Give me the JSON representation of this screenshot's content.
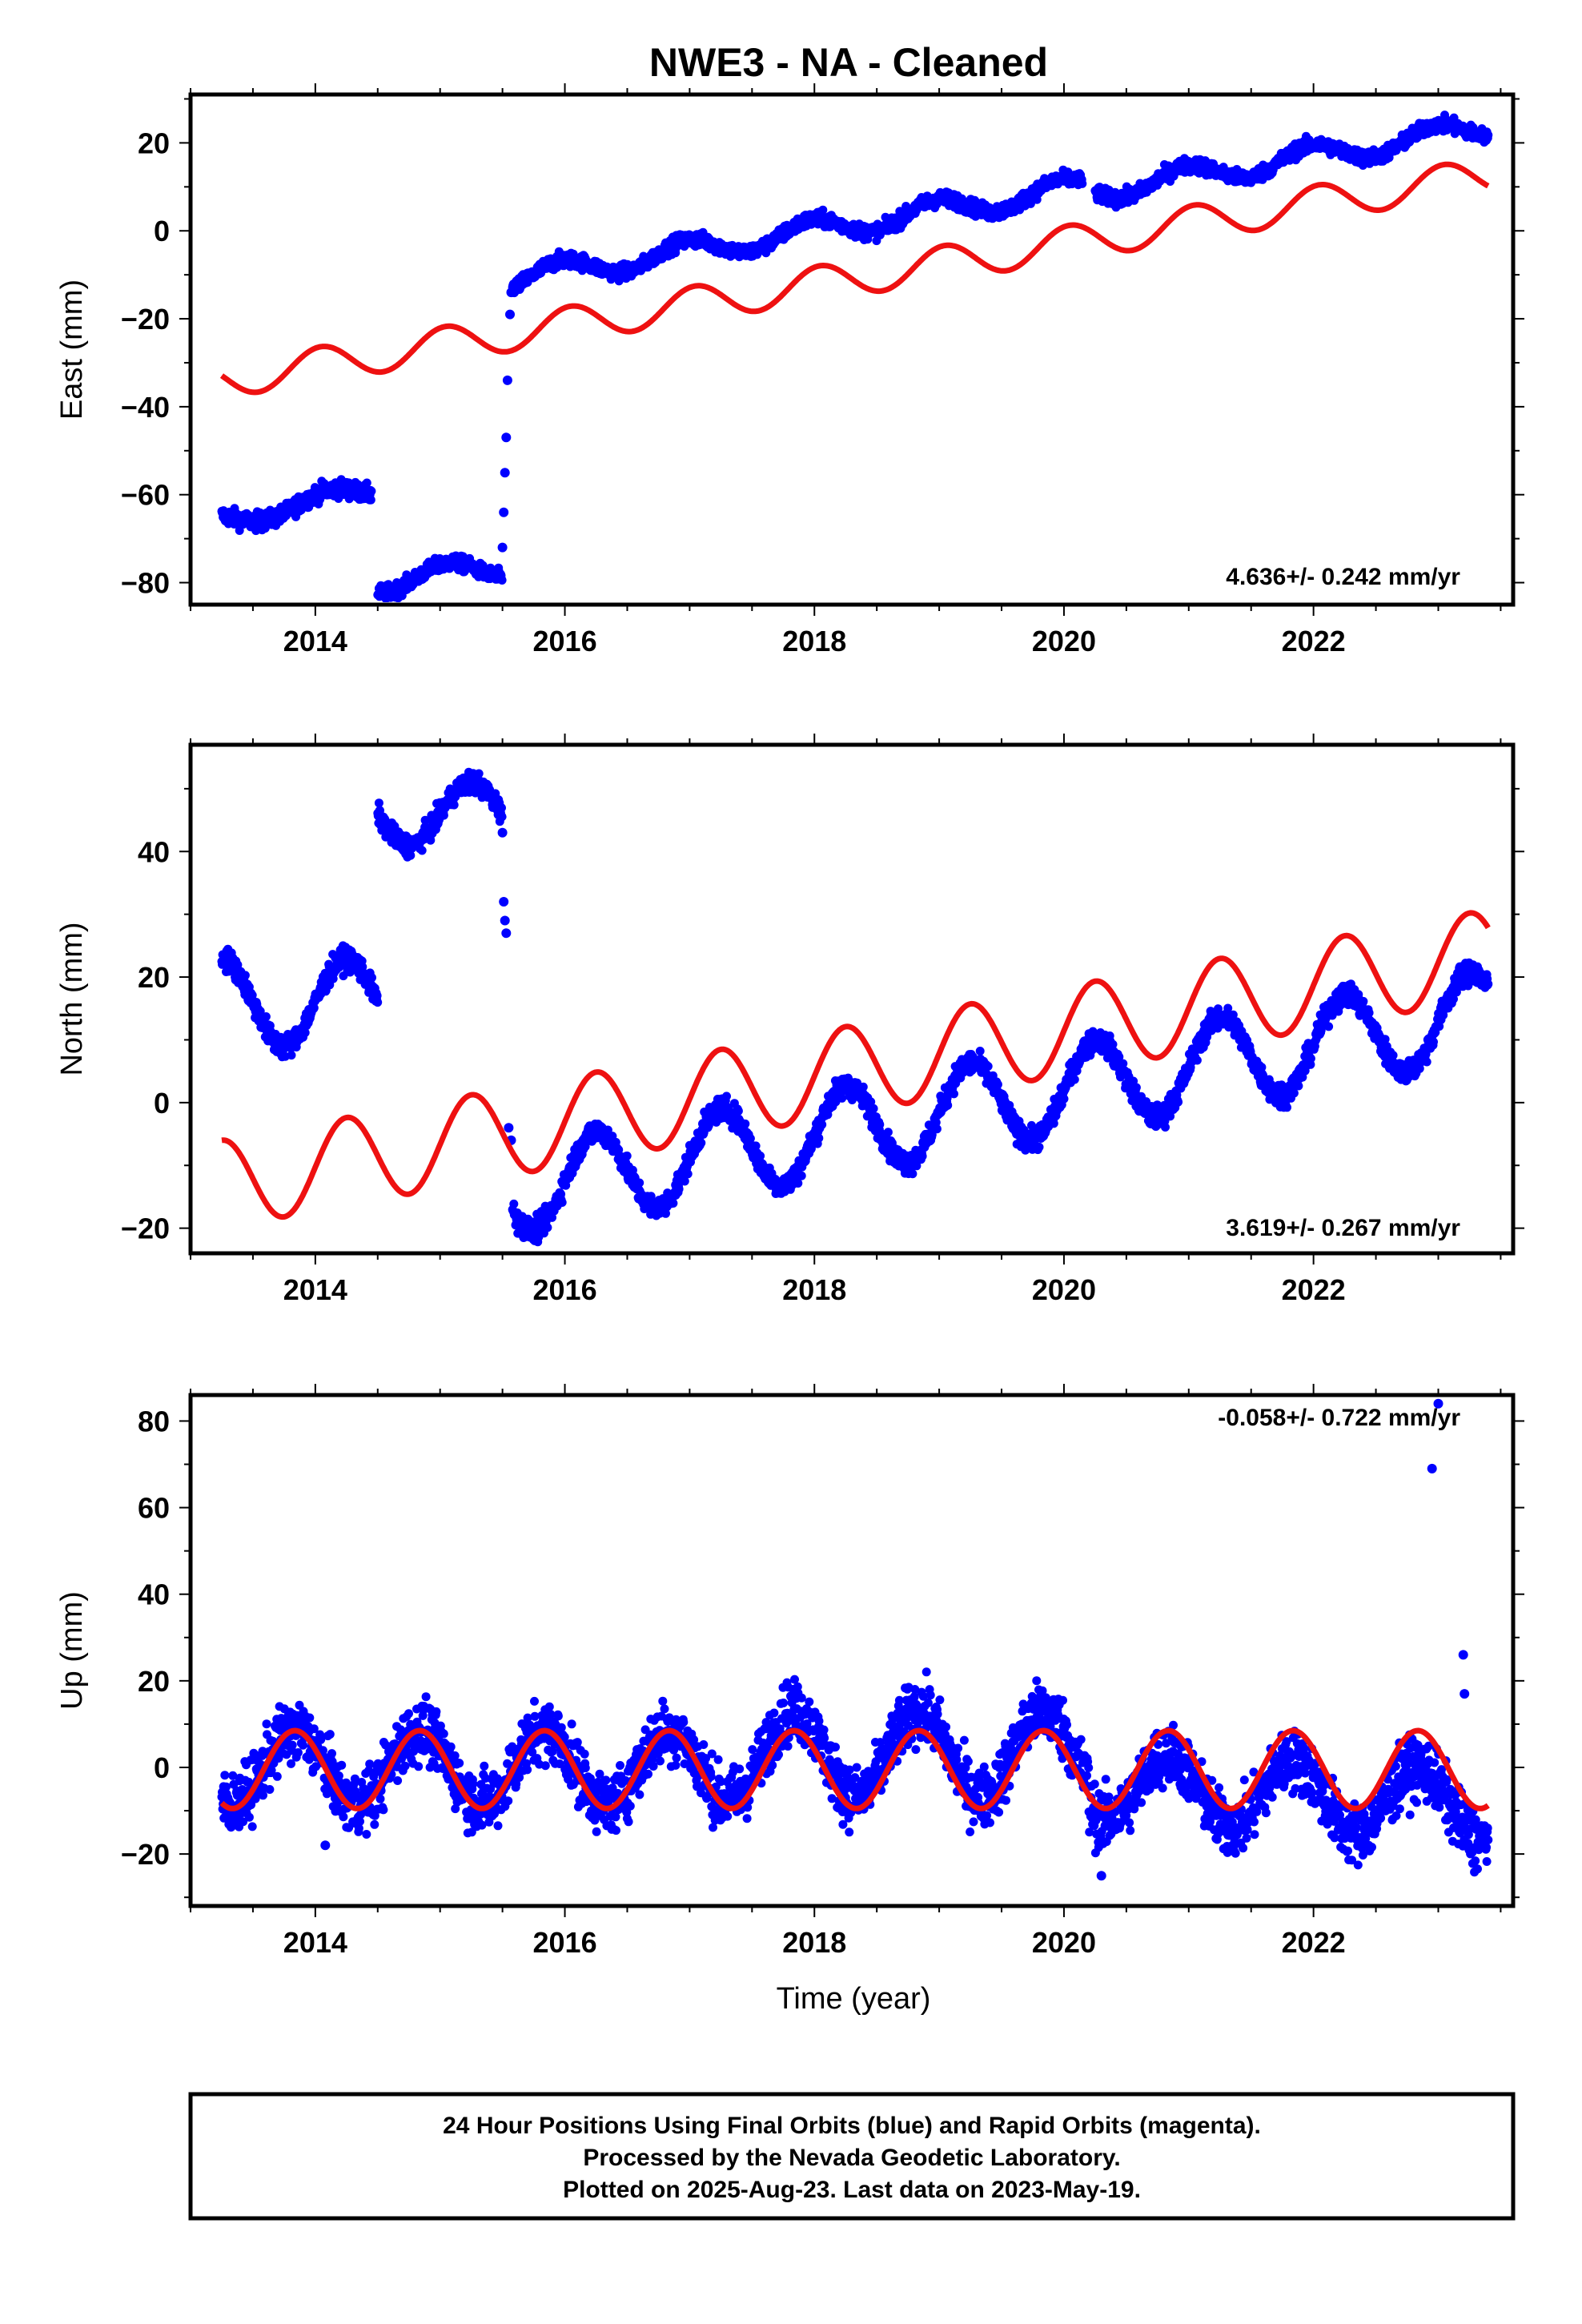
{
  "title": "NWE3  - NA - Cleaned",
  "colors": {
    "data": "#0000ff",
    "model": "#ee1111",
    "frame": "#000000"
  },
  "chart_data": [
    {
      "id": "east",
      "type": "scatter",
      "ylabel": "East (mm)",
      "xlabel": "",
      "xlim": [
        2013.0,
        2023.6
      ],
      "ylim": [
        -85,
        31
      ],
      "yticks": [
        -80,
        -60,
        -40,
        -20,
        0,
        20
      ],
      "xticks": [
        2014,
        2016,
        2018,
        2020,
        2022
      ],
      "rate_label": "4.636+/- 0.242 mm/yr",
      "series": [
        {
          "role": "data-segments",
          "segments": [
            {
              "x0": 2013.25,
              "x1": 2014.45,
              "base": -66,
              "trend": 6.0,
              "amp": 2.0,
              "phase": 0.9,
              "noise": 1.4
            },
            {
              "x0": 2014.5,
              "x1": 2015.5,
              "base": -80,
              "trend": 3.5,
              "amp": 2.5,
              "phase": 1.2,
              "noise": 1.2
            },
            {
              "x0": 2015.58,
              "x1": 2020.15,
              "base": -11,
              "trend": 4.6,
              "amp": 2.5,
              "phase": 1.7,
              "noise": 1.2
            },
            {
              "x0": 2020.25,
              "x1": 2023.4,
              "base": 9,
              "trend": 4.6,
              "amp": 2.5,
              "phase": 1.7,
              "noise": 1.2
            }
          ],
          "transition": [
            [
              2015.5,
              -72
            ],
            [
              2015.51,
              -64
            ],
            [
              2015.52,
              -55
            ],
            [
              2015.53,
              -47
            ],
            [
              2015.54,
              -34
            ],
            [
              2015.56,
              -19
            ],
            [
              2015.57,
              -14
            ]
          ]
        },
        {
          "role": "model",
          "x0": 2013.25,
          "x1": 2023.4,
          "base": -34,
          "trend": 4.6,
          "amp": 4.0,
          "phase": 1.3
        }
      ]
    },
    {
      "id": "north",
      "type": "scatter",
      "ylabel": "North (mm)",
      "xlabel": "",
      "xlim": [
        2013.0,
        2023.6
      ],
      "ylim": [
        -24,
        57
      ],
      "yticks": [
        -20,
        0,
        20,
        40
      ],
      "xticks": [
        2014,
        2016,
        2018,
        2020,
        2022
      ],
      "rate_label": "3.619+/- 0.267 mm/yr",
      "series": [
        {
          "role": "data-segments",
          "segments": [
            {
              "x0": 2013.25,
              "x1": 2014.5,
              "base": 16,
              "trend": 0.0,
              "amp": 7.0,
              "phase": 0.0,
              "noise": 1.3
            },
            {
              "x0": 2014.5,
              "x1": 2015.5,
              "base": 46,
              "trend": 0.0,
              "amp": 5.0,
              "phase": 0.0,
              "noise": 1.2
            },
            {
              "x0": 2015.58,
              "x1": 2023.4,
              "base": -14,
              "trend": 3.62,
              "amp": 7.0,
              "phase": 0.0,
              "noise": 1.3
            }
          ],
          "transition": [
            [
              2015.5,
              43
            ],
            [
              2015.51,
              32
            ],
            [
              2015.52,
              29
            ],
            [
              2015.53,
              27
            ],
            [
              2015.55,
              -4
            ],
            [
              2015.57,
              -6
            ]
          ]
        },
        {
          "role": "model",
          "x0": 2013.25,
          "x1": 2023.4,
          "base": -13,
          "trend": 3.62,
          "amp": 7.0,
          "phase": 0.0
        }
      ]
    },
    {
      "id": "up",
      "type": "scatter",
      "ylabel": "Up (mm)",
      "xlabel": "Time (year)",
      "xlim": [
        2013.0,
        2023.6
      ],
      "ylim": [
        -32,
        86
      ],
      "yticks": [
        -20,
        0,
        20,
        40,
        60,
        80
      ],
      "xticks": [
        2014,
        2016,
        2018,
        2020,
        2022
      ],
      "rate_label": "-0.058+/- 0.722 mm/yr",
      "series": [
        {
          "role": "data-segments",
          "segments": [
            {
              "x0": 2013.25,
              "x1": 2017.3,
              "base": 0,
              "trend": 0.0,
              "amp": 8.5,
              "phase": 2.6,
              "noise": 5.0
            },
            {
              "x0": 2017.3,
              "x1": 2020.2,
              "base": 3,
              "trend": 0.0,
              "amp": 10.0,
              "phase": 2.6,
              "noise": 5.0
            },
            {
              "x0": 2020.2,
              "x1": 2023.4,
              "base": -4,
              "trend": -1.5,
              "amp": 8.0,
              "phase": 2.6,
              "noise": 5.0
            }
          ],
          "outliers": [
            [
              2022.95,
              69
            ],
            [
              2023.0,
              84
            ],
            [
              2023.2,
              26
            ],
            [
              2023.21,
              17
            ],
            [
              2014.08,
              -18
            ],
            [
              2020.3,
              -25
            ]
          ]
        },
        {
          "role": "model",
          "x0": 2013.25,
          "x1": 2023.4,
          "base": -0.5,
          "trend": 0.0,
          "amp": 9.0,
          "phase": 2.6
        }
      ]
    }
  ],
  "footer": {
    "line1": "24 Hour Positions Using Final Orbits (blue) and Rapid Orbits (magenta).",
    "line2": "Processed by the Nevada Geodetic Laboratory.",
    "line3": "Plotted on 2025-Aug-23. Last data on 2023-May-19."
  }
}
